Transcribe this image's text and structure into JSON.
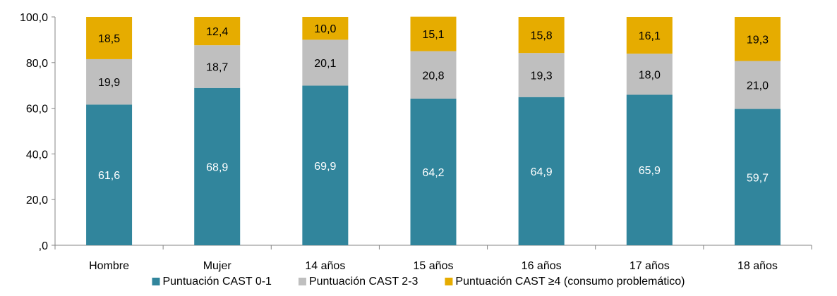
{
  "chart_data": {
    "type": "bar",
    "stacked": true,
    "categories": [
      "Hombre",
      "Mujer",
      "14 años",
      "15 años",
      "16 años",
      "17 años",
      "18 años"
    ],
    "series": [
      {
        "name": "Puntuación CAST 0-1",
        "color": "#31859C",
        "label_color": "#FFFFFF",
        "values": [
          61.6,
          68.9,
          69.9,
          64.2,
          64.9,
          65.9,
          59.7
        ],
        "labels": [
          "61,6",
          "68,9",
          "69,9",
          "64,2",
          "64,9",
          "65,9",
          "59,7"
        ]
      },
      {
        "name": "Puntuación CAST 2-3",
        "color": "#BFBFBF",
        "label_color": "#000000",
        "values": [
          19.9,
          18.7,
          20.1,
          20.8,
          19.3,
          18.0,
          21.0
        ],
        "labels": [
          "19,9",
          "18,7",
          "20,1",
          "20,8",
          "19,3",
          "18,0",
          "21,0"
        ]
      },
      {
        "name": "Puntuación CAST ≥4 (consumo problemático)",
        "color": "#E6AC00",
        "label_color": "#000000",
        "values": [
          18.5,
          12.4,
          10.0,
          15.1,
          15.8,
          16.1,
          19.3
        ],
        "labels": [
          "18,5",
          "12,4",
          "10,0",
          "15,1",
          "15,8",
          "16,1",
          "19,3"
        ]
      }
    ],
    "ylim": [
      0,
      100
    ],
    "yticks": [
      0,
      20,
      40,
      60,
      80,
      100
    ],
    "ytick_labels": [
      ",0",
      "20,0",
      "40,0",
      "60,0",
      "80,0",
      "100,0"
    ],
    "grid": false,
    "legend_position": "bottom",
    "title": "",
    "xlabel": "",
    "ylabel": ""
  }
}
